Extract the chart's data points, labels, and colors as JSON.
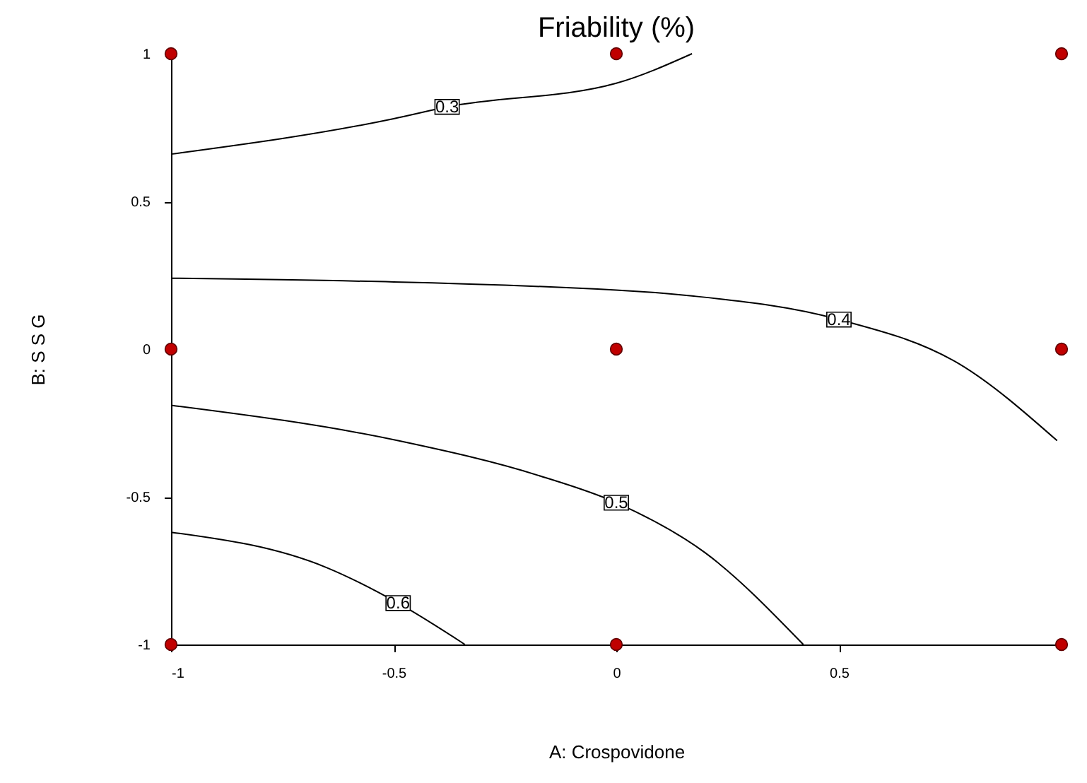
{
  "chart_data": {
    "type": "line",
    "title": "Friability (%)",
    "xlabel": "A: Crospovidone",
    "ylabel": "B: S S G",
    "xlim": [
      -1,
      1
    ],
    "xticks": [
      -1,
      -0.5,
      0,
      0.5
    ],
    "ylim": [
      -1,
      1
    ],
    "yticks": [
      -1,
      -0.5,
      0,
      0.5,
      1
    ],
    "grid": false,
    "series": [
      {
        "name": "0.3",
        "color": "#000000",
        "marker": "none",
        "x": [
          -1,
          -0.5,
          -0.38,
          0,
          0.17
        ],
        "values": [
          0.66,
          0.78,
          0.82,
          0.9,
          1
        ]
      },
      {
        "name": "0.4",
        "color": "#000000",
        "marker": "none",
        "x": [
          -1,
          0,
          0.17,
          0.5,
          0.77,
          0.99
        ],
        "values": [
          0.24,
          0.2,
          0.18,
          0.1,
          -0.05,
          -0.31
        ]
      },
      {
        "name": "0.5",
        "color": "#000000",
        "marker": "none",
        "x": [
          -1,
          -0.49,
          -0.17,
          0,
          0.2,
          0.42
        ],
        "values": [
          -0.19,
          -0.31,
          -0.43,
          -0.52,
          -0.69,
          -1
        ]
      },
      {
        "name": "0.6",
        "color": "#000000",
        "marker": "none",
        "x": [
          -1,
          -0.65,
          -0.49,
          -0.34
        ],
        "values": [
          -0.62,
          -0.74,
          -0.86,
          -1
        ]
      },
      {
        "type": "scatter",
        "color": "#c00000",
        "marker": "circle",
        "x": [
          -1,
          0,
          1,
          -1,
          0,
          1,
          -1,
          0,
          1
        ],
        "values": [
          1,
          1,
          1,
          0,
          0,
          0,
          -1,
          -1,
          -1
        ]
      }
    ]
  }
}
